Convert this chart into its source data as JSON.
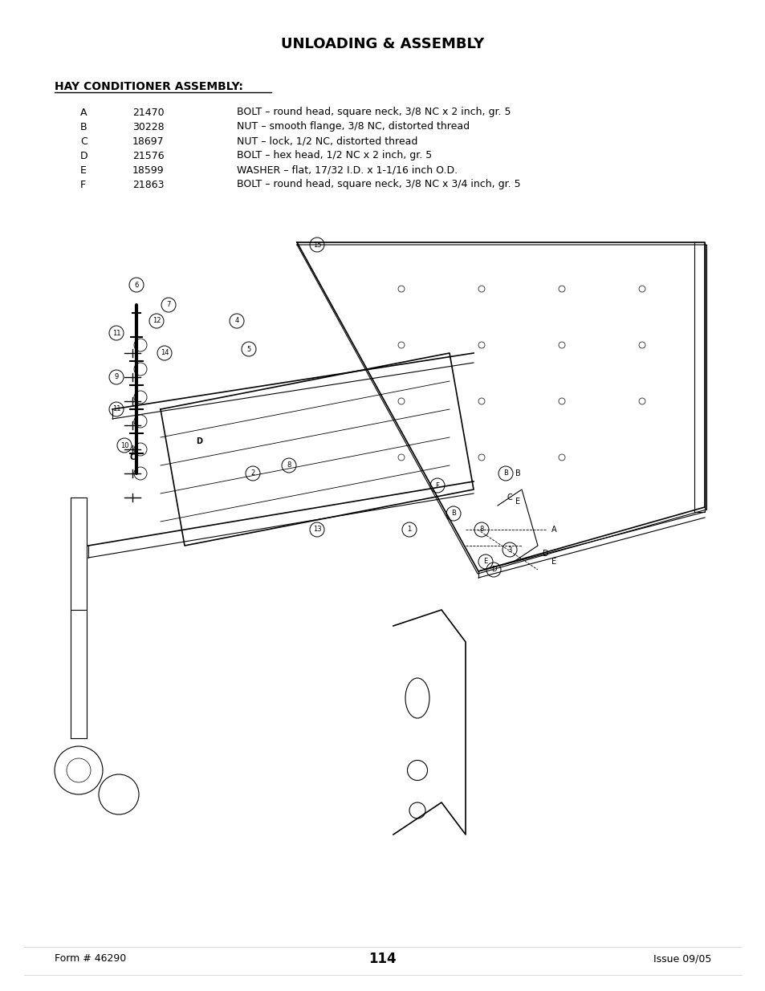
{
  "title": "UNLOADING & ASSEMBLY",
  "section_title": "HAY CONDITIONER ASSEMBLY:",
  "parts": [
    {
      "letter": "A",
      "number": "21470",
      "description": "BOLT – round head, square neck, 3/8 NC x 2 inch, gr. 5"
    },
    {
      "letter": "B",
      "number": "30228",
      "description": "NUT – smooth flange, 3/8 NC, distorted thread"
    },
    {
      "letter": "C",
      "number": "18697",
      "description": "NUT – lock, 1/2 NC, distorted thread"
    },
    {
      "letter": "D",
      "number": "21576",
      "description": "BOLT – hex head, 1/2 NC x 2 inch, gr. 5"
    },
    {
      "letter": "E",
      "number": "18599",
      "description": "WASHER – flat, 17/32 I.D. x 1-1/16 inch O.D."
    },
    {
      "letter": "F",
      "number": "21863",
      "description": "BOLT – round head, square neck, 3/8 NC x 3/4 inch, gr. 5"
    }
  ],
  "footer_left": "Form # 46290",
  "footer_center": "114",
  "footer_right": "Issue 09/05",
  "bg_color": "#ffffff",
  "text_color": "#000000",
  "title_fontsize": 13,
  "section_fontsize": 10,
  "parts_fontsize": 9,
  "footer_fontsize": 9
}
